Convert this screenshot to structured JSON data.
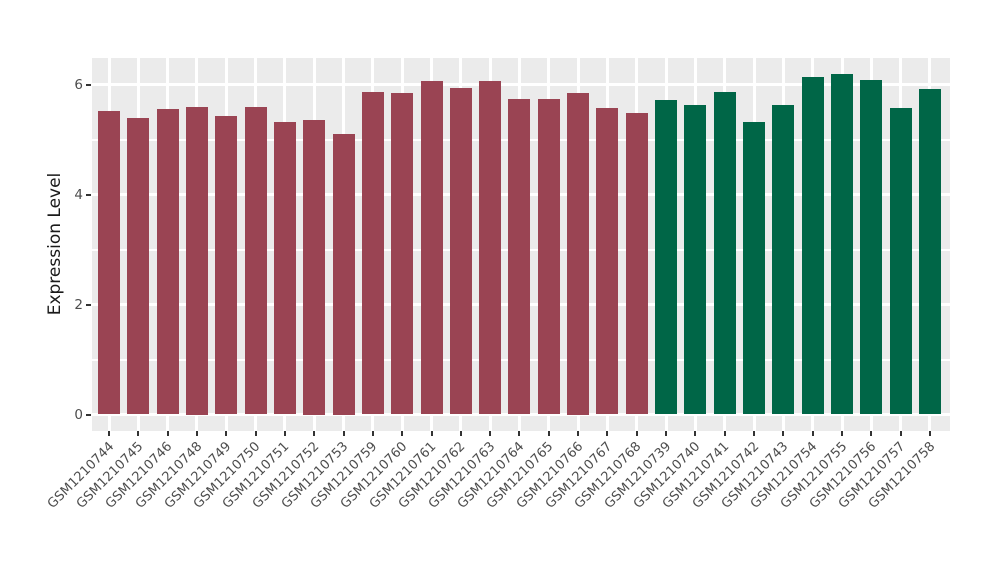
{
  "chart_data": {
    "type": "bar",
    "title": "",
    "xlabel": "",
    "ylabel": "Expression Level",
    "yticks": [
      0,
      2,
      4,
      6
    ],
    "yticks_minor": [
      1,
      3,
      5
    ],
    "ylim": [
      -0.31,
      6.51
    ],
    "grid": true,
    "legend_position": "none",
    "categories": [
      "GSM1210744",
      "GSM1210745",
      "GSM1210746",
      "GSM1210748",
      "GSM1210749",
      "GSM1210750",
      "GSM1210751",
      "GSM1210752",
      "GSM1210753",
      "GSM1210759",
      "GSM1210760",
      "GSM1210761",
      "GSM1210762",
      "GSM1210763",
      "GSM1210764",
      "GSM1210765",
      "GSM1210766",
      "GSM1210767",
      "GSM1210768",
      "GSM1210739",
      "GSM1210740",
      "GSM1210741",
      "GSM1210742",
      "GSM1210743",
      "GSM1210754",
      "GSM1210755",
      "GSM1210756",
      "GSM1210757",
      "GSM1210758"
    ],
    "values": [
      5.51,
      5.39,
      5.56,
      5.6,
      5.43,
      5.59,
      5.31,
      5.35,
      5.1,
      5.86,
      5.84,
      6.07,
      5.93,
      6.07,
      5.74,
      5.74,
      5.85,
      5.57,
      5.49,
      5.72,
      5.63,
      5.86,
      5.32,
      5.63,
      6.13,
      6.19,
      6.08,
      5.57,
      5.92
    ],
    "groups": [
      "g1",
      "g1",
      "g1",
      "g1",
      "g1",
      "g1",
      "g1",
      "g1",
      "g1",
      "g1",
      "g1",
      "g1",
      "g1",
      "g1",
      "g1",
      "g1",
      "g1",
      "g1",
      "g1",
      "g2",
      "g2",
      "g2",
      "g2",
      "g2",
      "g2",
      "g2",
      "g2",
      "g2",
      "g2"
    ],
    "colors": {
      "panel_bg": "#EBEBEB",
      "grid": "#FFFFFF",
      "axis_text": "#4D4D4D",
      "axis_title": "#1A1A1A",
      "tick_mark": "#333333",
      "groups": {
        "g1": "#9A4453",
        "g2": "#006647"
      }
    }
  }
}
